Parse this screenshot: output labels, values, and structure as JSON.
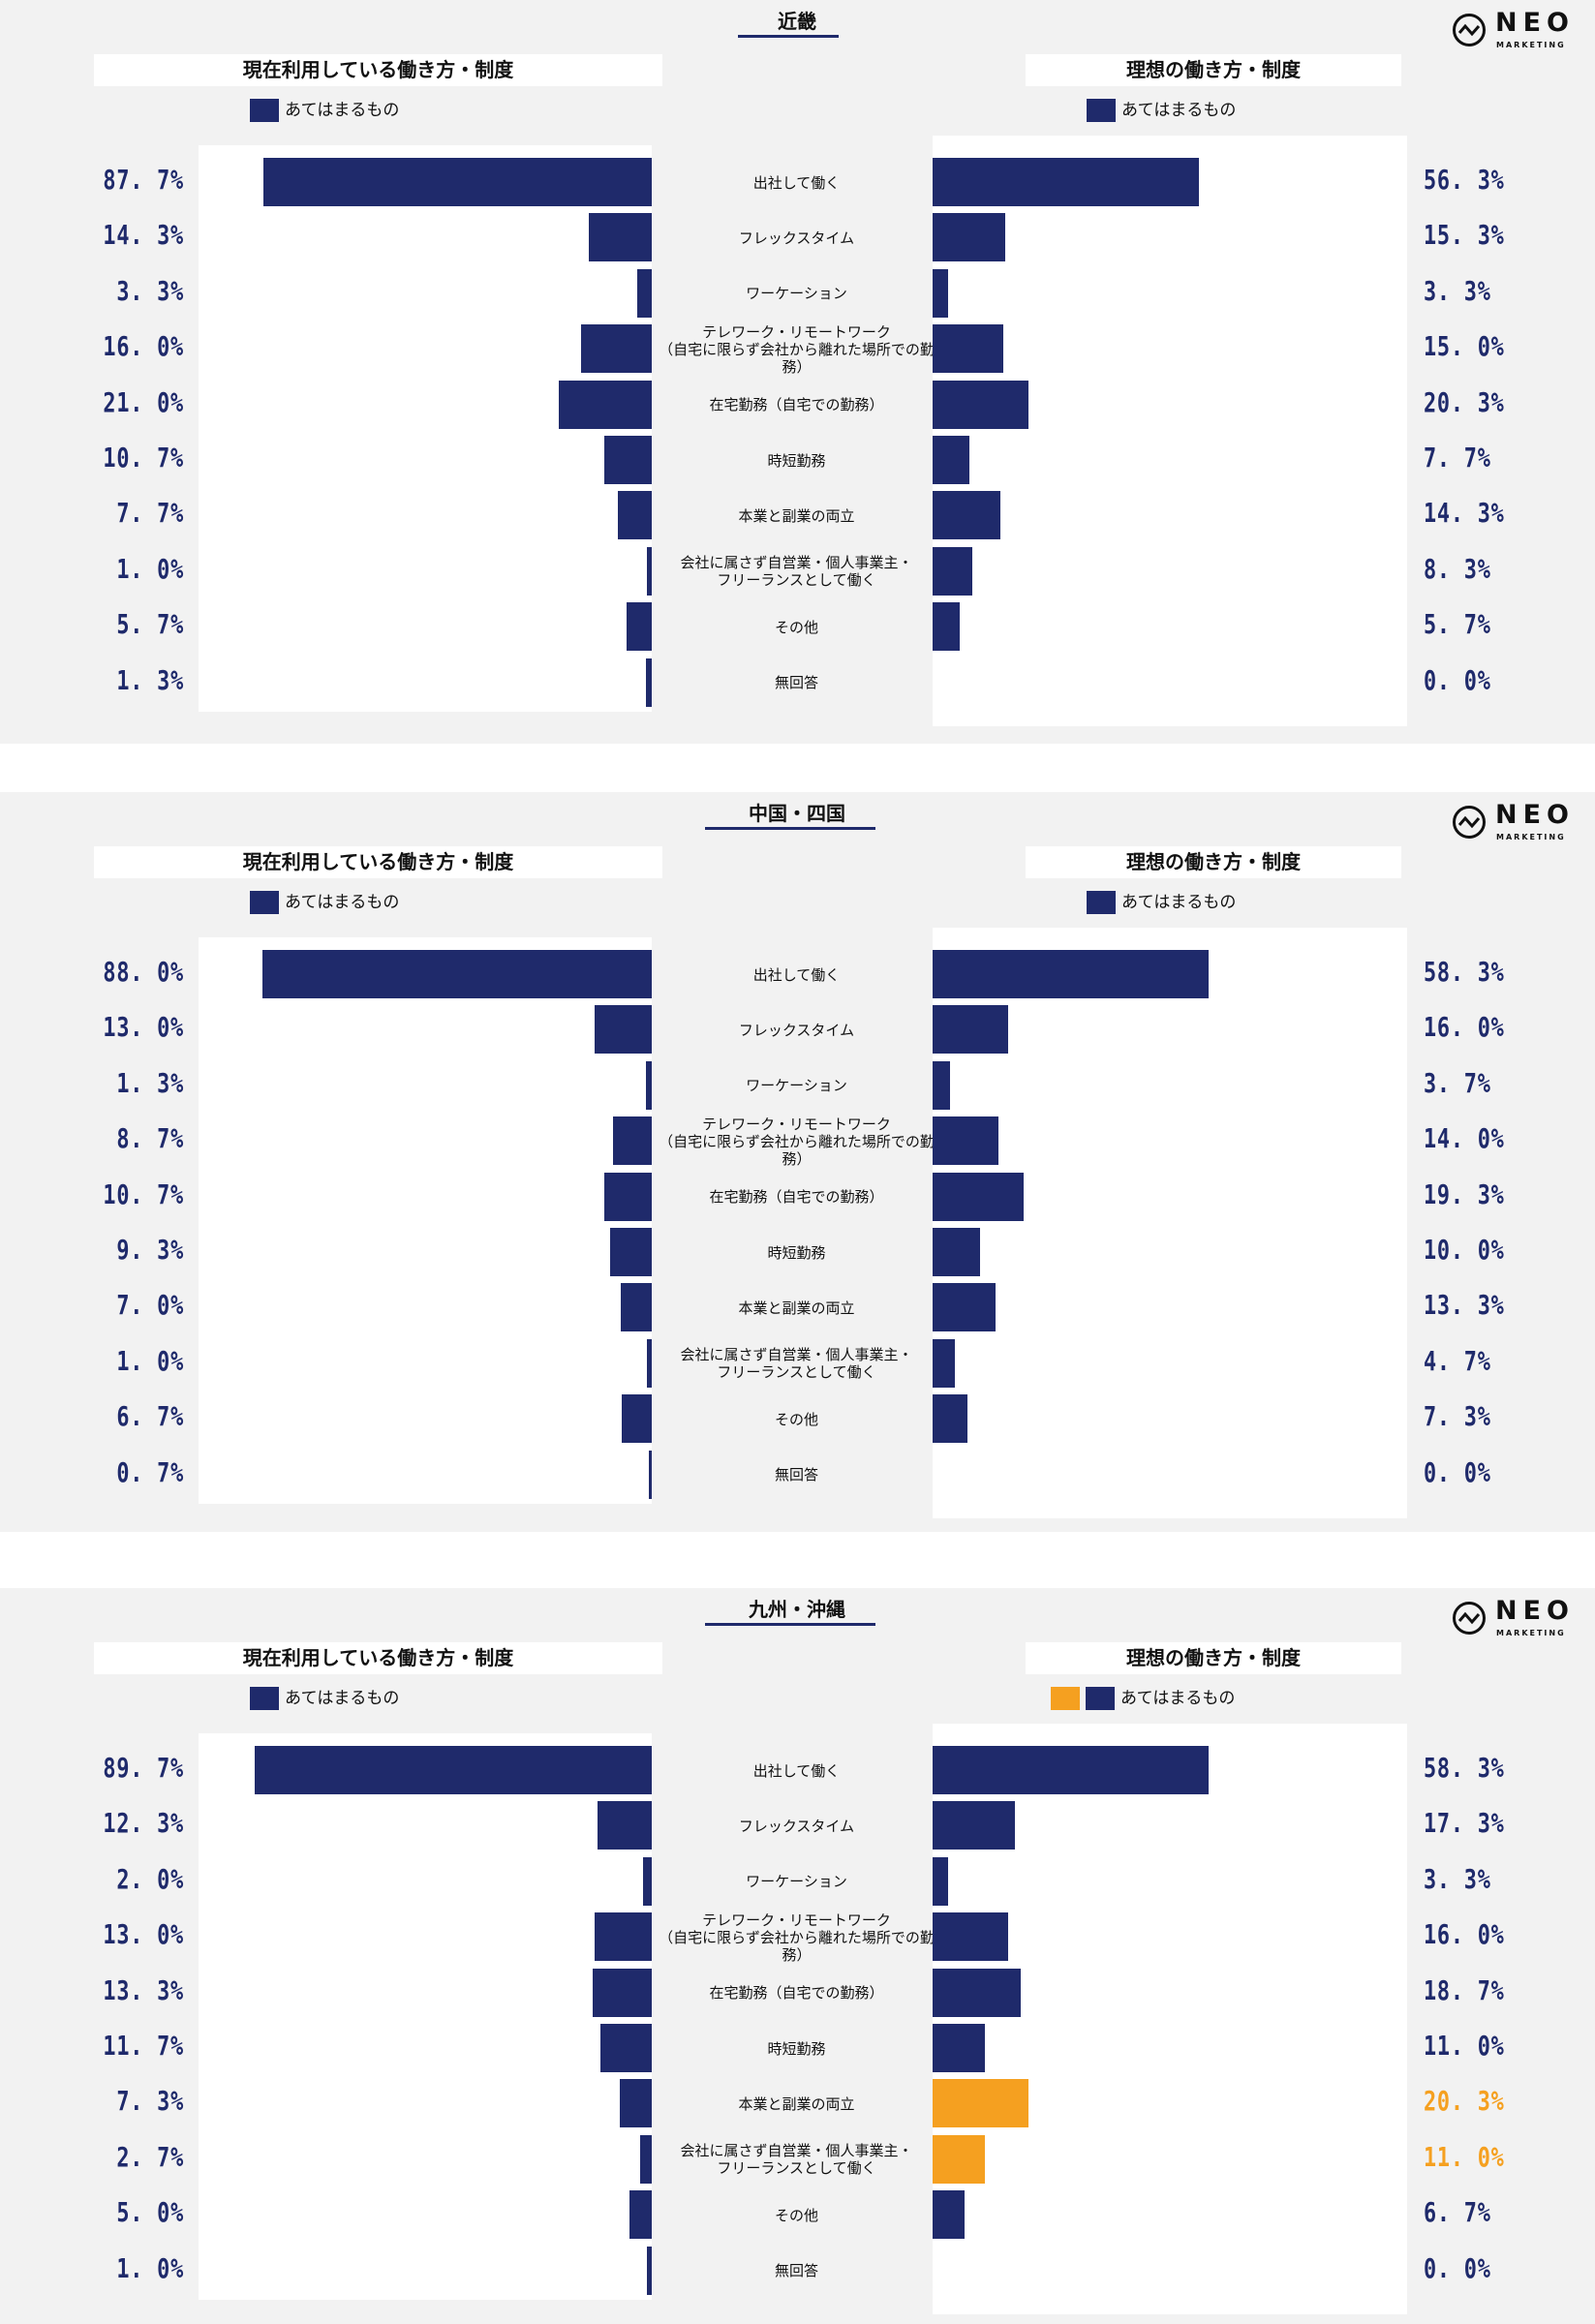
{
  "categories": [
    "出社して働く",
    "フレックスタイム",
    "ワーケーション",
    "テレワーク・リモートワーク\n（自宅に限らず会社から離れた場所での勤務）",
    "在宅勤務（自宅での勤務）",
    "時短勤務",
    "本業と副業の両立",
    "会社に属さず自営業・個人事業主・\nフリーランスとして働く",
    "その他",
    "無回答"
  ],
  "colors": {
    "bar": "#1f2a6b",
    "highlight": "#f5a020",
    "panel": "#f2f2f2"
  },
  "logo": {
    "text": "NEO",
    "sub": "MARKETING"
  },
  "chart_data": [
    {
      "type": "bar",
      "region": "近畿",
      "left_title": "現在利用している働き方・制度",
      "right_title": "理想の働き方・制度",
      "legend": "あてはまるもの",
      "series": [
        {
          "name": "現在利用している働き方・制度",
          "values": [
            87.7,
            14.3,
            3.3,
            16.0,
            21.0,
            10.7,
            7.7,
            1.0,
            5.7,
            1.3
          ],
          "labels": [
            "87. 7%",
            "14. 3%",
            "3. 3%",
            "16. 0%",
            "21. 0%",
            "10. 7%",
            "7. 7%",
            "1. 0%",
            "5. 7%",
            "1. 3%"
          ]
        },
        {
          "name": "理想の働き方・制度",
          "values": [
            56.3,
            15.3,
            3.3,
            15.0,
            20.3,
            7.7,
            14.3,
            8.3,
            5.7,
            0.0
          ],
          "labels": [
            "56. 3%",
            "15. 3%",
            "3. 3%",
            "15. 0%",
            "20. 3%",
            "7. 7%",
            "14. 3%",
            "8. 3%",
            "5. 7%",
            "0. 0%"
          ]
        }
      ],
      "highlight_right": []
    },
    {
      "type": "bar",
      "region": "中国・四国",
      "left_title": "現在利用している働き方・制度",
      "right_title": "理想の働き方・制度",
      "legend": "あてはまるもの",
      "series": [
        {
          "name": "現在利用している働き方・制度",
          "values": [
            88.0,
            13.0,
            1.3,
            8.7,
            10.7,
            9.3,
            7.0,
            1.0,
            6.7,
            0.7
          ],
          "labels": [
            "88. 0%",
            "13. 0%",
            "1. 3%",
            "8. 7%",
            "10. 7%",
            "9. 3%",
            "7. 0%",
            "1. 0%",
            "6. 7%",
            "0. 7%"
          ]
        },
        {
          "name": "理想の働き方・制度",
          "values": [
            58.3,
            16.0,
            3.7,
            14.0,
            19.3,
            10.0,
            13.3,
            4.7,
            7.3,
            0.0
          ],
          "labels": [
            "58. 3%",
            "16. 0%",
            "3. 7%",
            "14. 0%",
            "19. 3%",
            "10. 0%",
            "13. 3%",
            "4. 7%",
            "7. 3%",
            "0. 0%"
          ]
        }
      ],
      "highlight_right": []
    },
    {
      "type": "bar",
      "region": "九州・沖縄",
      "left_title": "現在利用している働き方・制度",
      "right_title": "理想の働き方・制度",
      "legend": "あてはまるもの",
      "series": [
        {
          "name": "現在利用している働き方・制度",
          "values": [
            89.7,
            12.3,
            2.0,
            13.0,
            13.3,
            11.7,
            7.3,
            2.7,
            5.0,
            1.0
          ],
          "labels": [
            "89. 7%",
            "12. 3%",
            "2. 0%",
            "13. 0%",
            "13. 3%",
            "11. 7%",
            "7. 3%",
            "2. 7%",
            "5. 0%",
            "1. 0%"
          ]
        },
        {
          "name": "理想の働き方・制度",
          "values": [
            58.3,
            17.3,
            3.3,
            16.0,
            18.7,
            11.0,
            20.3,
            11.0,
            6.7,
            0.0
          ],
          "labels": [
            "58. 3%",
            "17. 3%",
            "3. 3%",
            "16. 0%",
            "18. 7%",
            "11. 0%",
            "20. 3%",
            "11. 0%",
            "6. 7%",
            "0. 0%"
          ]
        }
      ],
      "highlight_right": [
        6,
        7
      ]
    }
  ]
}
